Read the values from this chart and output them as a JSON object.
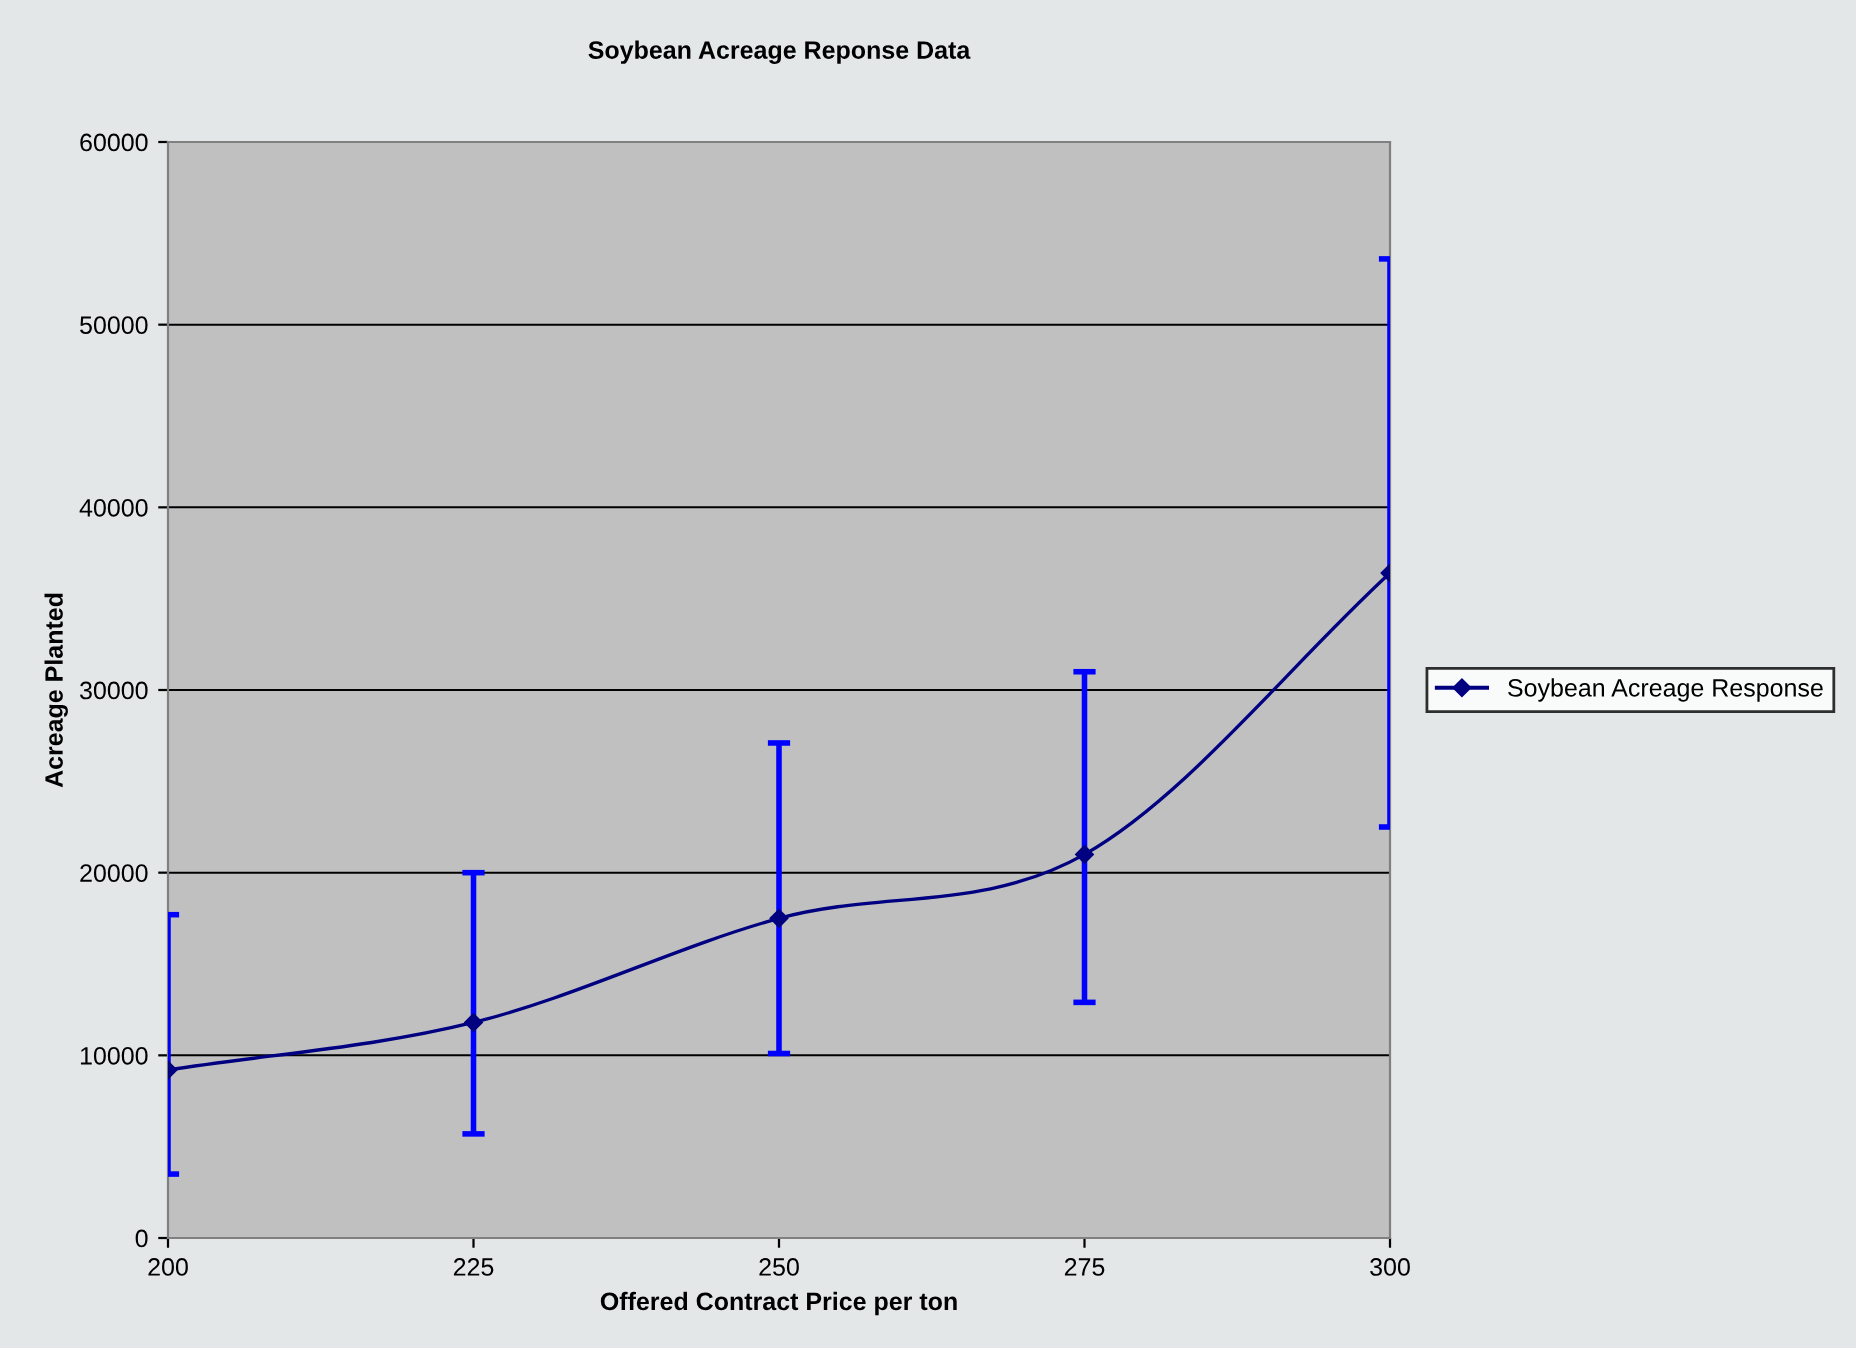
{
  "chart_data": {
    "type": "line",
    "title": "Soybean Acreage Reponse Data",
    "xlabel": "Offered Contract Price per ton",
    "ylabel": "Acreage Planted",
    "x": [
      200,
      225,
      250,
      275,
      300
    ],
    "series": [
      {
        "name": "Soybean Acreage Response",
        "color": "#000080",
        "values": [
          9200,
          11800,
          17500,
          21000,
          36400
        ],
        "errors": [
          [
            3500,
            17700
          ],
          [
            5700,
            20000
          ],
          [
            10100,
            27100
          ],
          [
            12900,
            31000
          ],
          [
            22500,
            53600
          ]
        ]
      }
    ],
    "xlim": [
      200,
      300
    ],
    "ylim": [
      0,
      60000
    ],
    "xticks": [
      200,
      225,
      250,
      275,
      300
    ],
    "yticks": [
      0,
      10000,
      20000,
      30000,
      40000,
      50000,
      60000
    ],
    "grid": "y",
    "legend": "right",
    "marker": "diamond",
    "line_style": "solid"
  }
}
